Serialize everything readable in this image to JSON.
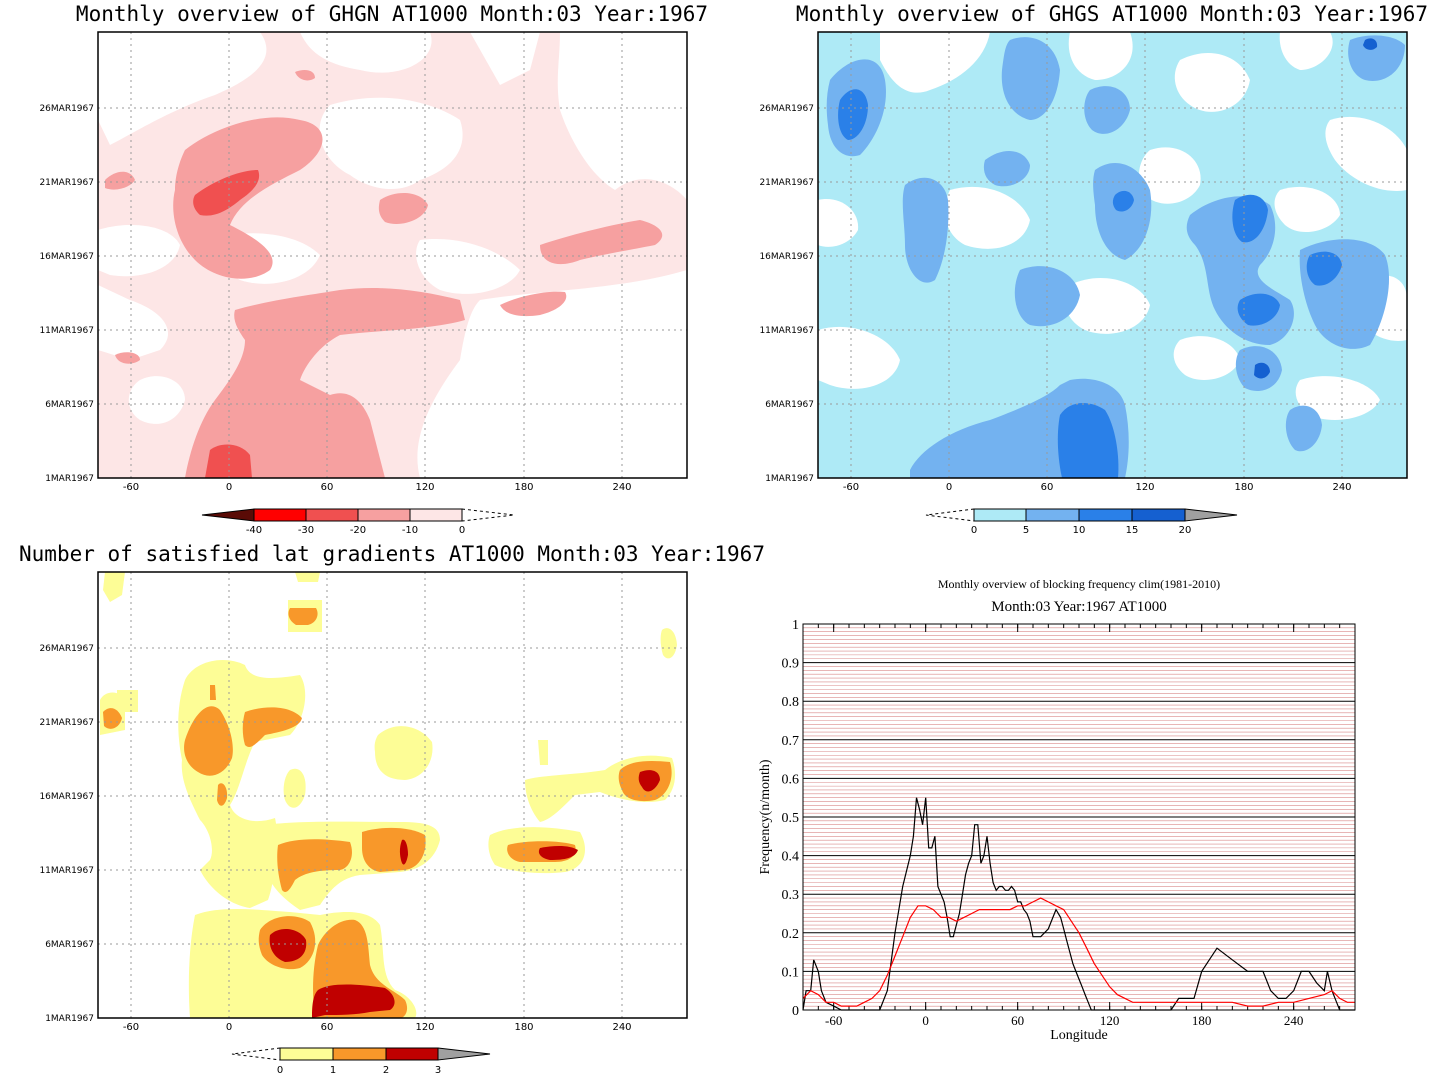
{
  "chart_data": [
    {
      "type": "heatmap",
      "title": "Monthly overview of GHGN AT1000 Month:03 Year:1967",
      "x_ticks": [
        "-60",
        "0",
        "60",
        "120",
        "180",
        "240"
      ],
      "x_tick_values": [
        -60,
        0,
        60,
        120,
        180,
        240
      ],
      "y_ticks": [
        "1MAR1967",
        "6MAR1967",
        "11MAR1967",
        "16MAR1967",
        "21MAR1967",
        "26MAR1967"
      ],
      "y_tick_values": [
        1,
        6,
        11,
        16,
        21,
        26
      ],
      "xlim": [
        -80,
        280
      ],
      "ylim": [
        1,
        31
      ],
      "grid": true,
      "colorbar": {
        "labels": [
          "-40",
          "-30",
          "-20",
          "-10",
          "0"
        ],
        "colors": [
          "#5a0b06",
          "#ff0000",
          "#f05050",
          "#f6a0a0",
          "#fde6e6"
        ],
        "end_left": "#5a0b06",
        "end_right": "open"
      }
    },
    {
      "type": "heatmap",
      "title": "Monthly overview of GHGS AT1000 Month:03 Year:1967",
      "x_ticks": [
        "-60",
        "0",
        "60",
        "120",
        "180",
        "240"
      ],
      "x_tick_values": [
        -60,
        0,
        60,
        120,
        180,
        240
      ],
      "y_ticks": [
        "1MAR1967",
        "6MAR1967",
        "11MAR1967",
        "16MAR1967",
        "21MAR1967",
        "26MAR1967"
      ],
      "y_tick_values": [
        1,
        6,
        11,
        16,
        21,
        26
      ],
      "xlim": [
        -80,
        280
      ],
      "ylim": [
        1,
        31
      ],
      "grid": true,
      "colorbar": {
        "labels": [
          "0",
          "5",
          "10",
          "15",
          "20"
        ],
        "colors": [
          "#aeeaf6",
          "#73b2f0",
          "#2a80e8",
          "#1560d0"
        ],
        "end_left": "open",
        "end_right": "#a0a0a0"
      }
    },
    {
      "type": "heatmap",
      "title": "Number of satisfied lat gradients AT1000 Month:03 Year:1967",
      "x_ticks": [
        "-60",
        "0",
        "60",
        "120",
        "180",
        "240"
      ],
      "x_tick_values": [
        -60,
        0,
        60,
        120,
        180,
        240
      ],
      "y_ticks": [
        "1MAR1967",
        "6MAR1967",
        "11MAR1967",
        "16MAR1967",
        "21MAR1967",
        "26MAR1967"
      ],
      "y_tick_values": [
        1,
        6,
        11,
        16,
        21,
        26
      ],
      "xlim": [
        -80,
        280
      ],
      "ylim": [
        1,
        31
      ],
      "grid": true,
      "colorbar": {
        "labels": [
          "0",
          "1",
          "2",
          "3"
        ],
        "colors": [
          "#fdfd96",
          "#f8982a",
          "#c00000"
        ],
        "end_left": "open",
        "end_right": "#a0a0a0"
      }
    },
    {
      "type": "line",
      "title": "Monthly overview of blocking frequency clim(1981-2010)",
      "subtitle": "Month:03 Year:1967  AT1000",
      "xlabel": "Longitude",
      "ylabel": "Frequency(n/month)",
      "xlim": [
        -80,
        280
      ],
      "ylim": [
        0,
        1
      ],
      "x_ticks": [
        "-60",
        "0",
        "60",
        "120",
        "180",
        "240"
      ],
      "x_tick_values": [
        -60,
        0,
        60,
        120,
        180,
        240
      ],
      "y_ticks": [
        "0",
        "0.1",
        "0.2",
        "0.3",
        "0.4",
        "0.5",
        "0.6",
        "0.7",
        "0.8",
        "0.9",
        "1"
      ],
      "y_tick_values": [
        0,
        0.1,
        0.2,
        0.3,
        0.4,
        0.5,
        0.6,
        0.7,
        0.8,
        0.9,
        1
      ],
      "grid": true,
      "series": [
        {
          "color": "#000000",
          "x": [
            -80,
            -78,
            -75,
            -73,
            -70,
            -68,
            -65,
            -60,
            -55,
            -50,
            -45,
            -40,
            -35,
            -30,
            -25,
            -20,
            -15,
            -10,
            -8,
            -6,
            -4,
            -2,
            0,
            2,
            4,
            6,
            8,
            10,
            12,
            14,
            16,
            18,
            20,
            22,
            24,
            26,
            28,
            30,
            32,
            34,
            36,
            38,
            40,
            42,
            44,
            46,
            48,
            50,
            52,
            54,
            56,
            58,
            60,
            62,
            64,
            66,
            68,
            70,
            75,
            80,
            85,
            88,
            90,
            92,
            94,
            96,
            98,
            100,
            102,
            104,
            106,
            108,
            110,
            115,
            120,
            125,
            130,
            140,
            150,
            160,
            165,
            170,
            175,
            180,
            185,
            190,
            200,
            210,
            220,
            225,
            230,
            235,
            240,
            245,
            250,
            255,
            260,
            262,
            265,
            268,
            270,
            272,
            275,
            278,
            280
          ],
          "y": [
            0,
            0.05,
            0.05,
            0.13,
            0.1,
            0.05,
            0.02,
            0.01,
            0,
            0,
            0,
            0,
            0,
            0,
            0.05,
            0.2,
            0.32,
            0.4,
            0.45,
            0.55,
            0.52,
            0.48,
            0.55,
            0.42,
            0.42,
            0.45,
            0.32,
            0.3,
            0.28,
            0.24,
            0.19,
            0.19,
            0.22,
            0.25,
            0.3,
            0.35,
            0.38,
            0.4,
            0.48,
            0.48,
            0.38,
            0.4,
            0.45,
            0.38,
            0.33,
            0.31,
            0.32,
            0.32,
            0.31,
            0.31,
            0.32,
            0.31,
            0.28,
            0.28,
            0.26,
            0.25,
            0.23,
            0.19,
            0.19,
            0.21,
            0.26,
            0.24,
            0.21,
            0.18,
            0.15,
            0.12,
            0.1,
            0.08,
            0.06,
            0.04,
            0.02,
            0,
            0,
            0,
            0,
            0,
            0,
            0,
            0,
            0,
            0.03,
            0.03,
            0.03,
            0.1,
            0.13,
            0.16,
            0.13,
            0.1,
            0.1,
            0.05,
            0.03,
            0.03,
            0.05,
            0.1,
            0.1,
            0.07,
            0.05,
            0.1,
            0.05,
            0.02,
            0,
            0,
            0,
            0,
            0
          ]
        },
        {
          "color": "#ff0000",
          "x": [
            -80,
            -75,
            -70,
            -65,
            -60,
            -55,
            -50,
            -45,
            -40,
            -35,
            -30,
            -25,
            -20,
            -15,
            -10,
            -5,
            0,
            5,
            10,
            15,
            20,
            25,
            30,
            35,
            40,
            45,
            50,
            55,
            60,
            65,
            70,
            75,
            80,
            85,
            90,
            95,
            100,
            105,
            110,
            115,
            120,
            125,
            130,
            135,
            140,
            150,
            160,
            170,
            180,
            190,
            200,
            210,
            220,
            230,
            240,
            250,
            260,
            265,
            270,
            275,
            280
          ],
          "y": [
            0.03,
            0.05,
            0.04,
            0.02,
            0.02,
            0.01,
            0.01,
            0.01,
            0.02,
            0.03,
            0.05,
            0.09,
            0.14,
            0.19,
            0.24,
            0.27,
            0.27,
            0.26,
            0.24,
            0.24,
            0.23,
            0.24,
            0.25,
            0.26,
            0.26,
            0.26,
            0.26,
            0.26,
            0.27,
            0.27,
            0.28,
            0.29,
            0.28,
            0.27,
            0.26,
            0.23,
            0.2,
            0.16,
            0.12,
            0.09,
            0.06,
            0.04,
            0.03,
            0.02,
            0.02,
            0.02,
            0.02,
            0.02,
            0.02,
            0.02,
            0.02,
            0.01,
            0.01,
            0.02,
            0.02,
            0.03,
            0.04,
            0.05,
            0.03,
            0.02,
            0.02
          ]
        }
      ]
    }
  ]
}
